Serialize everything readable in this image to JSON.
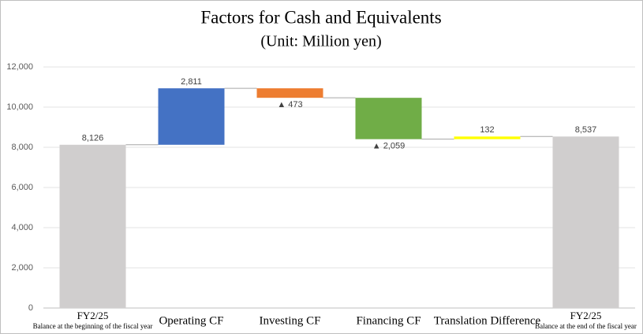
{
  "chart_data": {
    "type": "waterfall",
    "title": "Factors for Cash and Equivalents",
    "subtitle": "(Unit: Million yen)",
    "categories": [
      "FY2/25",
      "Operating CF",
      "Investing CF",
      "Financing CF",
      "Translation Difference",
      "FY2/25"
    ],
    "category_notes": [
      "Balance at the beginning of the fiscal year",
      null,
      null,
      null,
      null,
      "Balance at the end of the fiscal year"
    ],
    "values": [
      8126,
      2811,
      -473,
      -2059,
      132,
      8537
    ],
    "value_labels": [
      "8,126",
      "2,811",
      "▲ 473",
      "▲ 2,059",
      "132",
      "8,537"
    ],
    "is_total": [
      true,
      false,
      false,
      false,
      false,
      true
    ],
    "colors": [
      "#d0cece",
      "#4472c4",
      "#ed7d31",
      "#70ad47",
      "#ffff00",
      "#d0cece"
    ],
    "ylim": [
      0,
      12000
    ],
    "yticks": [
      0,
      {
        "value": 2000,
        "label": "2,000"
      },
      {
        "value": 4000,
        "label": "4,000"
      },
      {
        "value": 6000,
        "label": "6,000"
      },
      {
        "value": 8000,
        "label": "8,000"
      },
      {
        "value": 10000,
        "label": "10,000"
      },
      {
        "value": 12000,
        "label": "12,000"
      }
    ],
    "grid": true
  }
}
